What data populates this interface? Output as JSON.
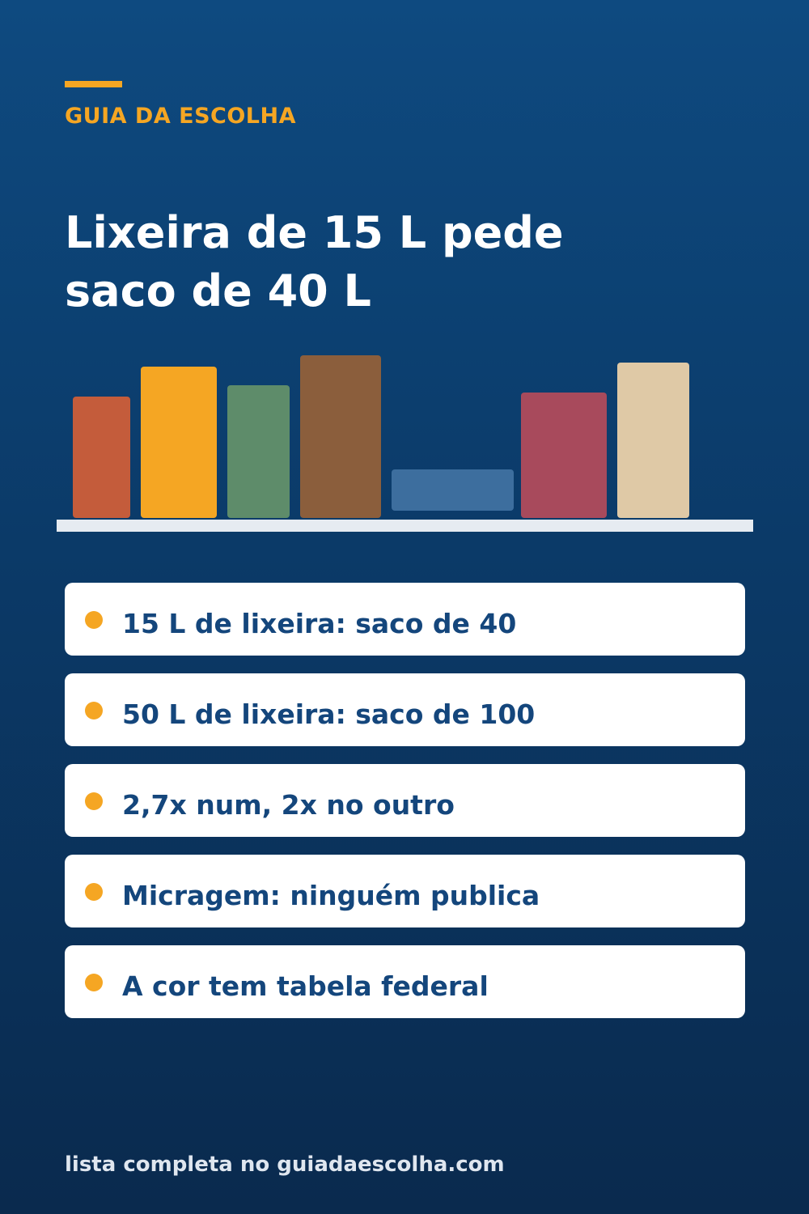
{
  "header": {
    "brand": "GUIA DA ESCOLHA",
    "accent_color": "#f5a623"
  },
  "headline": {
    "line1": "Lixeira de 15 L pede",
    "line2": "saco de 40 L"
  },
  "illustration": {
    "icon": "books-on-shelf-icon",
    "book_colors": [
      "#c45c3b",
      "#f5a623",
      "#5e8c6a",
      "#8b5e3c",
      "#3d6e9e",
      "#a84a5c",
      "#dfc9a6"
    ]
  },
  "list": {
    "items": [
      "15 L de lixeira: saco de 40",
      "50 L de lixeira: saco de 100",
      "2,7x num, 2x no outro",
      "Micragem: ninguém publica",
      "A cor tem tabela federal"
    ]
  },
  "footer": {
    "text": "lista completa no guiadaescolha.com"
  }
}
